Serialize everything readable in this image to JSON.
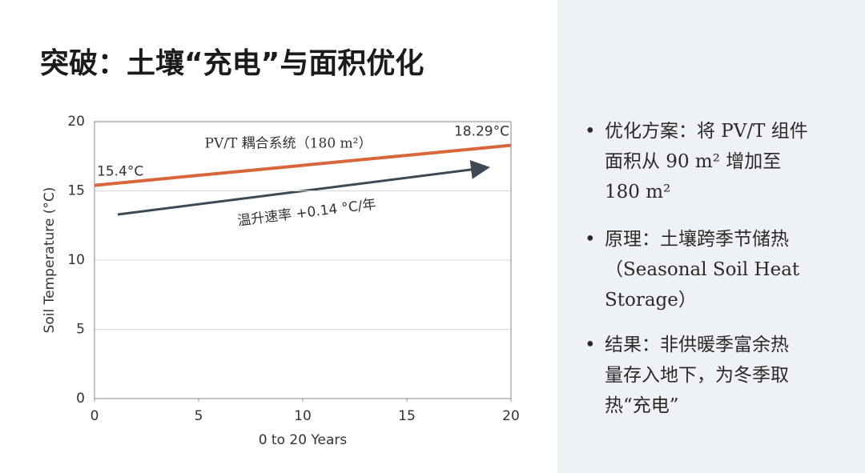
{
  "slide_title": "突破：土壤“充电”与面积优化",
  "chart_data": {
    "type": "line",
    "x": [
      0,
      20
    ],
    "series": [
      {
        "name": "PV/T 耦合系统（180 m²）",
        "color": "#d9653b",
        "values": [
          15.4,
          18.29
        ],
        "value_labels": [
          "15.4°C",
          "18.29°C"
        ]
      }
    ],
    "xlim": [
      0,
      20
    ],
    "ylim": [
      0,
      20
    ],
    "xticks": [
      0,
      5,
      10,
      15,
      20
    ],
    "yticks": [
      0,
      5,
      10,
      15,
      20
    ],
    "xlabel": "0 to 20 Years",
    "ylabel": "Soil Temperature (°C)",
    "annotation": "温升速率 +0.14 °C/年",
    "grid": true
  },
  "bullets": [
    [
      "优化方案：将 PV/T 组件",
      "面积从 90 m² 增加至",
      "180 m²"
    ],
    [
      "原理：土壤跨季节储热",
      "（Seasonal Soil Heat",
      "Storage）"
    ],
    [
      "结果：非供暖季富余热",
      "量存入地下，为冬季取",
      "热“充电”"
    ]
  ]
}
